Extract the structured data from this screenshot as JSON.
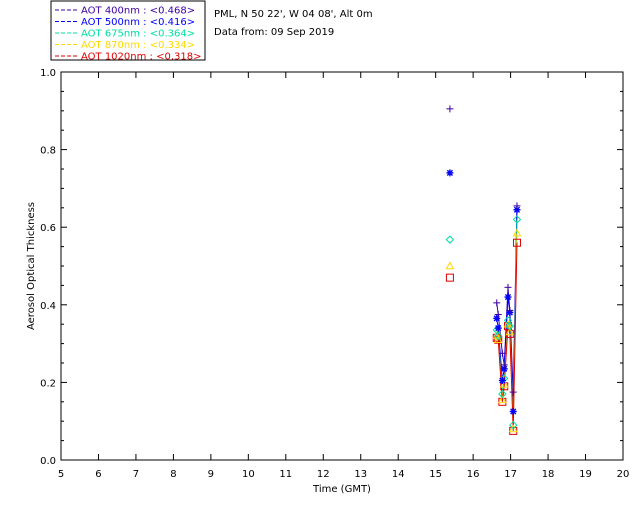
{
  "info": {
    "location": "PML, N 50 22', W 04 08', Alt 0m",
    "date": "Data from: 09 Sep 2019"
  },
  "chart_data": {
    "type": "scatter",
    "xlabel": "Time (GMT)",
    "ylabel": "Aerosol Optical Thickness",
    "xlim": [
      5,
      20
    ],
    "ylim": [
      0,
      1
    ],
    "xticks": [
      "5",
      "6",
      "7",
      "8",
      "9",
      "10",
      "11",
      "12",
      "13",
      "14",
      "15",
      "16",
      "17",
      "18",
      "19",
      "20"
    ],
    "yticks": [
      "0.0",
      "0.2",
      "0.4",
      "0.6",
      "0.8",
      "1.0"
    ],
    "legend_position": "top-left",
    "series": [
      {
        "name": "AOT  400nm : <0.468>",
        "color": "#3c00a0",
        "marker": "plus",
        "x": [
          15.38,
          16.63,
          16.67,
          16.78,
          16.83,
          16.93,
          16.98,
          17.07,
          17.17
        ],
        "y": [
          0.905,
          0.405,
          0.375,
          0.275,
          0.245,
          0.445,
          0.385,
          0.175,
          0.655
        ]
      },
      {
        "name": "AOT  500nm : <0.416>",
        "color": "#0000ff",
        "marker": "asterisk",
        "x": [
          15.38,
          16.63,
          16.67,
          16.78,
          16.83,
          16.93,
          16.98,
          17.07,
          17.17
        ],
        "y": [
          0.74,
          0.365,
          0.34,
          0.205,
          0.235,
          0.42,
          0.38,
          0.125,
          0.645
        ]
      },
      {
        "name": "AOT  675nm : <0.364>",
        "color": "#00e0a0",
        "marker": "diamond",
        "x": [
          15.38,
          16.63,
          16.67,
          16.78,
          16.83,
          16.93,
          16.98,
          17.07,
          17.17
        ],
        "y": [
          0.568,
          0.335,
          0.32,
          0.17,
          0.21,
          0.36,
          0.345,
          0.09,
          0.62
        ]
      },
      {
        "name": "AOT  870nm : <0.334>",
        "color": "#ffd800",
        "marker": "triangle",
        "x": [
          15.38,
          16.63,
          16.67,
          16.78,
          16.83,
          16.93,
          16.98,
          17.07,
          17.17
        ],
        "y": [
          0.5,
          0.32,
          0.31,
          0.155,
          0.195,
          0.35,
          0.33,
          0.08,
          0.585
        ]
      },
      {
        "name": "AOT 1020nm : <0.318>",
        "color": "#e00000",
        "marker": "square",
        "x": [
          15.38,
          16.63,
          16.67,
          16.78,
          16.83,
          16.93,
          16.98,
          17.07,
          17.17
        ],
        "y": [
          0.47,
          0.315,
          0.31,
          0.15,
          0.19,
          0.345,
          0.325,
          0.075,
          0.56
        ]
      }
    ]
  }
}
